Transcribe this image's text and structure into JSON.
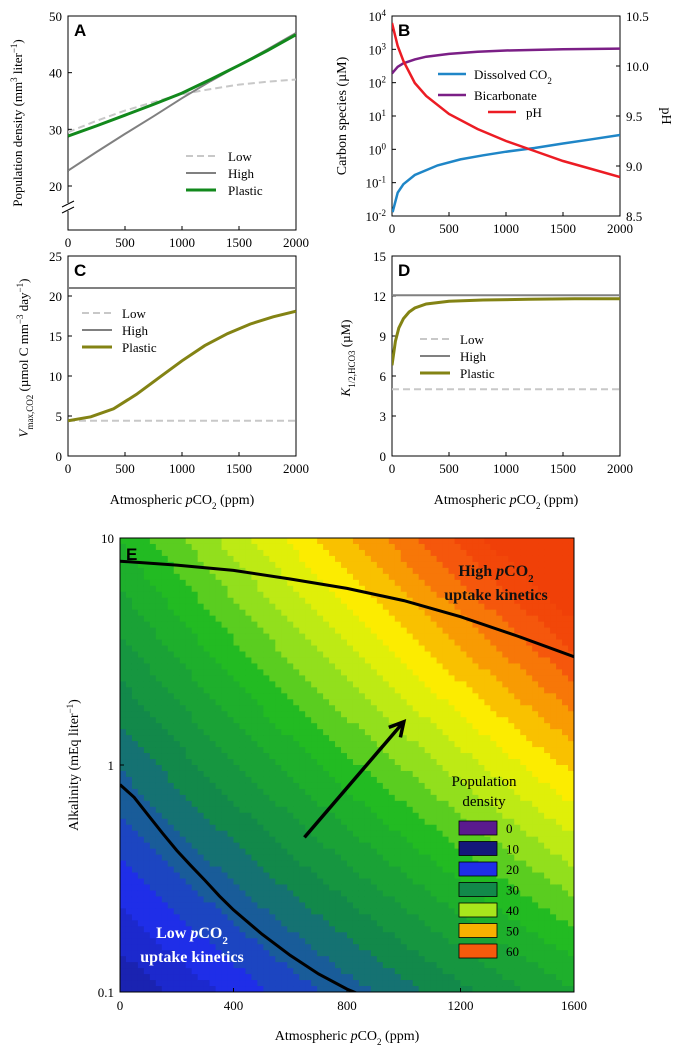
{
  "chart_data": [
    {
      "panel": "A",
      "type": "line",
      "ylabel_html": "Population density (mm<tspan baseline-shift='super' font-size='9'>3</tspan> liter<tspan baseline-shift='super' font-size='9'>−1</tspan>)",
      "xlim": [
        0,
        2000
      ],
      "ylim": [
        20,
        50
      ],
      "xticks": [
        0,
        500,
        1000,
        1500,
        2000
      ],
      "yticks": [
        20,
        30,
        40,
        50
      ],
      "axis_break": true,
      "legend": "bottom-right",
      "series": [
        {
          "name": "Low",
          "color": "#c8c8c8",
          "dash": true,
          "x": [
            0,
            250,
            500,
            750,
            1000,
            1250,
            1500,
            1750,
            2000
          ],
          "y": [
            29.5,
            31.5,
            33.3,
            34.8,
            36.2,
            37.1,
            37.9,
            38.4,
            38.8
          ]
        },
        {
          "name": "High",
          "color": "#808080",
          "dash": false,
          "x": [
            0,
            250,
            500,
            750,
            1000,
            1250,
            1500,
            1750,
            2000
          ],
          "y": [
            22.7,
            26.0,
            29.2,
            32.3,
            35.5,
            38.5,
            41.3,
            44.1,
            47.0
          ]
        },
        {
          "name": "Plastic",
          "color": "#12891c",
          "dash": false,
          "x": [
            0,
            250,
            500,
            750,
            1000,
            1250,
            1500,
            1750,
            2000
          ],
          "y": [
            28.8,
            30.6,
            32.5,
            34.4,
            36.4,
            38.8,
            41.3,
            43.9,
            46.7
          ]
        }
      ]
    },
    {
      "panel": "B",
      "type": "line",
      "ylabel": "Carbon species (µM)",
      "ylabel_right": "pH",
      "xlim": [
        0,
        2000
      ],
      "ylim_log": [
        -2,
        4
      ],
      "ylim_right": [
        8.5,
        10.5
      ],
      "xticks": [
        0,
        500,
        1000,
        1500,
        2000
      ],
      "yticks_exp": [
        -2,
        -1,
        0,
        1,
        2,
        3,
        4
      ],
      "yticks_right": [
        "8.5",
        "9.0",
        "9.5",
        "10.0",
        "10.5"
      ],
      "legend": "top-right",
      "series": [
        {
          "name": "Dissolved CO2",
          "color": "#1f86c7",
          "axis": "left-log",
          "x": [
            5,
            50,
            100,
            200,
            400,
            600,
            800,
            1000,
            1250,
            1500,
            1750,
            2000
          ],
          "y": [
            0.013,
            0.05,
            0.09,
            0.17,
            0.33,
            0.5,
            0.66,
            0.85,
            1.1,
            1.5,
            2.0,
            2.7
          ]
        },
        {
          "name": "Bicarbonate",
          "color": "#7b1f86",
          "axis": "left-log",
          "x": [
            0,
            50,
            100,
            200,
            300,
            500,
            750,
            1000,
            1500,
            2000
          ],
          "y": [
            190,
            300,
            380,
            500,
            600,
            730,
            850,
            920,
            1000,
            1050
          ]
        },
        {
          "name": "pH",
          "color": "#ec1c24",
          "axis": "right",
          "x": [
            0,
            50,
            100,
            200,
            300,
            500,
            750,
            1000,
            1250,
            1500,
            1750,
            2000
          ],
          "y": [
            10.43,
            10.2,
            10.05,
            9.83,
            9.7,
            9.52,
            9.37,
            9.25,
            9.15,
            9.05,
            8.97,
            8.89
          ]
        }
      ]
    },
    {
      "panel": "C",
      "type": "line",
      "xlim": [
        0,
        2000
      ],
      "ylim": [
        0,
        25
      ],
      "xticks": [
        0,
        500,
        1000,
        1500,
        2000
      ],
      "yticks": [
        0,
        5,
        10,
        15,
        20,
        25
      ],
      "xlabel": "Atmospheric pCO2 (ppm)",
      "legend": "top-left",
      "series": [
        {
          "name": "Low",
          "color": "#c8c8c8",
          "dash": true,
          "x": [
            0,
            2000
          ],
          "y": [
            4.4,
            4.4
          ]
        },
        {
          "name": "High",
          "color": "#808080",
          "dash": false,
          "x": [
            0,
            2000
          ],
          "y": [
            21.0,
            21.0
          ]
        },
        {
          "name": "Plastic",
          "color": "#838314",
          "dash": false,
          "x": [
            0,
            200,
            400,
            600,
            800,
            1000,
            1200,
            1400,
            1600,
            1800,
            2000
          ],
          "y": [
            4.4,
            4.9,
            5.9,
            7.7,
            9.8,
            11.9,
            13.8,
            15.3,
            16.5,
            17.4,
            18.1
          ]
        }
      ]
    },
    {
      "panel": "D",
      "type": "line",
      "xlim": [
        0,
        2000
      ],
      "ylim": [
        0,
        15
      ],
      "xticks": [
        0,
        500,
        1000,
        1500,
        2000
      ],
      "yticks": [
        0,
        3,
        6,
        9,
        12,
        15
      ],
      "xlabel": "Atmospheric pCO2 (ppm)",
      "legend": "center-left",
      "series": [
        {
          "name": "Low",
          "color": "#c8c8c8",
          "dash": true,
          "x": [
            0,
            2000
          ],
          "y": [
            5.0,
            5.0
          ]
        },
        {
          "name": "High",
          "color": "#808080",
          "dash": false,
          "x": [
            0,
            2000
          ],
          "y": [
            12.05,
            12.05
          ]
        },
        {
          "name": "Plastic",
          "color": "#838314",
          "dash": false,
          "x": [
            0,
            30,
            60,
            100,
            150,
            200,
            300,
            500,
            800,
            1200,
            1600,
            2000
          ],
          "y": [
            6.8,
            8.6,
            9.6,
            10.3,
            10.8,
            11.1,
            11.4,
            11.6,
            11.7,
            11.75,
            11.8,
            11.8
          ]
        }
      ]
    },
    {
      "panel": "E",
      "type": "heatmap",
      "xlabel": "Atmospheric pCO2 (ppm)",
      "ylabel_html": "Alkalinity (mEq liter<tspan baseline-shift='super' font-size='9'>−1</tspan>)",
      "xlim": [
        0,
        1600
      ],
      "ylim_log": [
        -1,
        1
      ],
      "xticks": [
        0,
        400,
        800,
        1200,
        1600
      ],
      "yticks": [
        "0.1",
        "1",
        "10"
      ],
      "legend": "center-right",
      "legend_title": [
        "Population",
        "density"
      ],
      "levels": [
        0,
        10,
        20,
        30,
        40,
        50,
        60
      ],
      "colormap": [
        [
          0,
          "#5a1a8e"
        ],
        [
          10,
          "#14187a"
        ],
        [
          20,
          "#1f2ee8"
        ],
        [
          30,
          "#12894a"
        ],
        [
          40,
          "#22bb22"
        ],
        [
          46,
          "#a8e61c"
        ],
        [
          52,
          "#fcf400"
        ],
        [
          56,
          "#f8b000"
        ],
        [
          62,
          "#f65a0c"
        ],
        [
          66,
          "#f04008"
        ]
      ],
      "contour_low": {
        "x": [
          0,
          50,
          100,
          150,
          200,
          250,
          300,
          350,
          400,
          500,
          600,
          700,
          800,
          850
        ],
        "y": [
          0.82,
          0.72,
          0.6,
          0.5,
          0.42,
          0.36,
          0.31,
          0.265,
          0.23,
          0.18,
          0.145,
          0.12,
          0.103,
          0.097
        ]
      },
      "contour_high": {
        "x": [
          0,
          200,
          400,
          600,
          800,
          1000,
          1200,
          1400,
          1600
        ],
        "y": [
          7.9,
          7.6,
          7.2,
          6.6,
          6.0,
          5.3,
          4.5,
          3.7,
          3.0
        ]
      },
      "arrow": {
        "from": [
          650,
          0.48
        ],
        "to": [
          1000,
          1.55
        ]
      },
      "annotations": {
        "high_line1": "High ",
        "high_line1_italic": "p",
        "high_line1_rest": "CO",
        "high_sub": "2",
        "high_line2": "uptake kinetics",
        "low_line1": "Low ",
        "low_line1_italic": "p",
        "low_line1_rest": "CO",
        "low_sub": "2",
        "low_line2": "uptake kinetics"
      }
    }
  ],
  "panel_labels": [
    "A",
    "B",
    "C",
    "D",
    "E"
  ],
  "legend_labels": {
    "low": "Low",
    "high": "High",
    "plastic": "Plastic",
    "dissolved": "Dissolved CO",
    "dissolved_sub": "2",
    "bicarbonate": "Bicarbonate",
    "ph": "pH"
  },
  "axis_labels": {
    "xlabel_prefix": "Atmospheric ",
    "xlabel_italic": "p",
    "xlabel_suffix": "CO",
    "xlabel_sub": "2",
    "xlabel_tail": " (ppm)",
    "a_ylabel": "Population density (mm",
    "a_ylabel_sup": "3",
    "a_ylabel_mid": " liter",
    "a_ylabel_sup2": "−1",
    "a_ylabel_end": ")",
    "b_ylabel": "Carbon species (µM)",
    "b_ylabel_right": "pH",
    "c_ylabel_v": "V",
    "c_ylabel_sub": "max,CO2",
    "c_ylabel_rest": " (µmol C mm",
    "c_ylabel_sup1": "−3",
    "c_ylabel_mid": " day",
    "c_ylabel_sup2": "−1",
    "c_ylabel_end": ")",
    "d_ylabel_k": "K",
    "d_ylabel_sub": "1/2,HCO3",
    "d_ylabel_rest": " (µM)",
    "e_ylabel": "Alkalinity (mEq liter",
    "e_ylabel_sup": "−1",
    "e_ylabel_end": ")"
  }
}
